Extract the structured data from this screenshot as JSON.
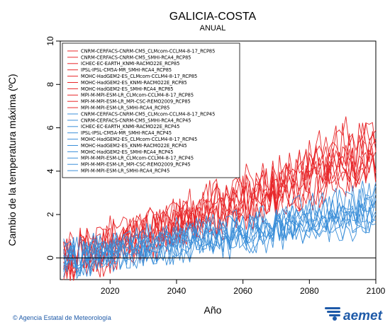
{
  "header": {
    "title": "GALICIA-COSTA",
    "subtitle": "ANUAL"
  },
  "footer": {
    "credit": "© Agencia Estatal de Meteorología",
    "logo_text": "aemet",
    "logo_color": "#1e5aa8"
  },
  "chart_data": {
    "type": "line",
    "title": "GALICIA-COSTA",
    "subtitle": "ANUAL",
    "xlabel": "Año",
    "ylabel": "Cambio de la temperatura máxima (ºC)",
    "xlim": [
      2005,
      2100
    ],
    "ylim": [
      -1,
      10
    ],
    "xticks": [
      2020,
      2040,
      2060,
      2080,
      2100
    ],
    "yticks": [
      0,
      2,
      4,
      6,
      8,
      10
    ],
    "zero_line": true,
    "grid": false,
    "legend_position": "top-left",
    "colors": {
      "RCP85": "#e8272a",
      "RCP45": "#3b8fd9"
    },
    "series": [
      {
        "name": "CNRM-CERFACS-CNRM-CM5_CLMcom-CCLM4-8-17_RCP85",
        "scenario": "RCP85",
        "trend": 4.6,
        "seed": 11
      },
      {
        "name": "CNRM-CERFACS-CNRM-CM5_SMHI-RCA4_RCP85",
        "scenario": "RCP85",
        "trend": 4.3,
        "seed": 12
      },
      {
        "name": "ICHEC-EC-EARTH_KNMI-RACMO22E_RCP85",
        "scenario": "RCP85",
        "trend": 4.0,
        "seed": 13
      },
      {
        "name": "IPSL-IPSL-CM5A-MR_SMHI-RCA4_RCP85",
        "scenario": "RCP85",
        "trend": 5.2,
        "seed": 14
      },
      {
        "name": "MOHC-HadGEM2-ES_CLMcom-CCLM4-8-17_RCP85",
        "scenario": "RCP85",
        "trend": 5.6,
        "seed": 15
      },
      {
        "name": "MOHC-HadGEM2-ES_KNMI-RACMO22E_RCP85",
        "scenario": "RCP85",
        "trend": 5.0,
        "seed": 16
      },
      {
        "name": "MOHC-HadGEM2-ES_SMHI-RCA4_RCP85",
        "scenario": "RCP85",
        "trend": 4.8,
        "seed": 17
      },
      {
        "name": "MPI-M-MPI-ESM-LR_CLMcom-CCLM4-8-17_RCP85",
        "scenario": "RCP85",
        "trend": 4.1,
        "seed": 18
      },
      {
        "name": "MPI-M-MPI-ESM-LR_MPI-CSC-REMO2009_RCP85",
        "scenario": "RCP85",
        "trend": 3.9,
        "seed": 19
      },
      {
        "name": "MPI-M-MPI-ESM-LR_SMHI-RCA4_RCP85",
        "scenario": "RCP85",
        "trend": 4.2,
        "seed": 20
      },
      {
        "name": "CNRM-CERFACS-CNRM-CM5_CLMcom-CCLM4-8-17_RCP45",
        "scenario": "RCP45",
        "trend": 1.8,
        "seed": 21
      },
      {
        "name": "CNRM-CERFACS-CNRM-CM5_SMHI-RCA4_RCP45",
        "scenario": "RCP45",
        "trend": 1.6,
        "seed": 22
      },
      {
        "name": "ICHEC-EC-EARTH_KNMI-RACMO22E_RCP45",
        "scenario": "RCP45",
        "trend": 1.5,
        "seed": 23
      },
      {
        "name": "IPSL-IPSL-CM5A-MR_SMHI-RCA4_RCP45",
        "scenario": "RCP45",
        "trend": 2.3,
        "seed": 24
      },
      {
        "name": "MOHC-HadGEM2-ES_CLMcom-CCLM4-8-17_RCP45",
        "scenario": "RCP45",
        "trend": 2.2,
        "seed": 25
      },
      {
        "name": "MOHC-HadGEM2-ES_KNMI-RACMO22E_RCP45",
        "scenario": "RCP45",
        "trend": 2.0,
        "seed": 26
      },
      {
        "name": "MOHC-HadGEM2-ES_SMHI-RCA4_RCP45",
        "scenario": "RCP45",
        "trend": 2.1,
        "seed": 27
      },
      {
        "name": "MPI-M-MPI-ESM-LR_CLMcom-CCLM4-8-17_RCP45",
        "scenario": "RCP45",
        "trend": 1.4,
        "seed": 28
      },
      {
        "name": "MPI-M-MPI-ESM-LR_MPI-CSC-REMO2009_RCP45",
        "scenario": "RCP45",
        "trend": 1.3,
        "seed": 29
      },
      {
        "name": "MPI-M-MPI-ESM-LR_SMHI-RCA4_RCP45",
        "scenario": "RCP45",
        "trend": 1.5,
        "seed": 30
      }
    ]
  }
}
